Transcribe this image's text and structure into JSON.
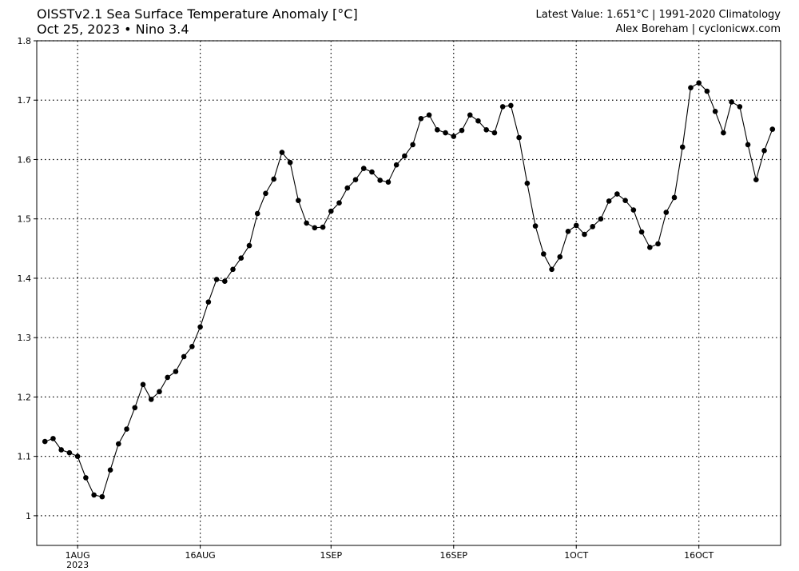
{
  "title": {
    "line1": "OISSTv2.1 Sea Surface Temperature Anomaly [°C]",
    "line2_date": "Oct 25, 2023",
    "line2_sep": "•",
    "line2_region": "Nino 3.4",
    "right_line1": "Latest Value: 1.651°C | 1991-2020 Climatology",
    "right_line2": "Alex Boreham | cyclonicwx.com"
  },
  "colors": {
    "line": "#000000",
    "marker": "#000000",
    "grid": "#000000",
    "background": "#ffffff"
  },
  "chart_data": {
    "type": "line",
    "title": "OISSTv2.1 Sea Surface Temperature Anomaly [°C]",
    "xlabel": "",
    "ylabel": "",
    "x_start": "2023-07-28",
    "x_end": "2023-10-25",
    "x_range": [
      "2023-07-27",
      "2023-10-26"
    ],
    "ylim": [
      0.95,
      1.8
    ],
    "yticks": [
      1,
      1.1,
      1.2,
      1.3,
      1.4,
      1.5,
      1.6,
      1.7,
      1.8
    ],
    "ytick_labels": [
      "1",
      "1.1",
      "1.2",
      "1.3",
      "1.4",
      "1.5",
      "1.6",
      "1.7",
      "1.8"
    ],
    "xticks": [
      {
        "date": "2023-08-01",
        "label": "1AUG",
        "sublabel": "2023"
      },
      {
        "date": "2023-08-16",
        "label": "16AUG",
        "sublabel": ""
      },
      {
        "date": "2023-09-01",
        "label": "1SEP",
        "sublabel": ""
      },
      {
        "date": "2023-09-16",
        "label": "16SEP",
        "sublabel": ""
      },
      {
        "date": "2023-10-01",
        "label": "1OCT",
        "sublabel": ""
      },
      {
        "date": "2023-10-16",
        "label": "16OCT",
        "sublabel": ""
      }
    ],
    "grid": true,
    "grid_style": "dotted",
    "series": [
      {
        "values": [
          1.125,
          1.13,
          1.111,
          1.106,
          1.1,
          1.064,
          1.035,
          1.032,
          1.077,
          1.121,
          1.146,
          1.182,
          1.221,
          1.196,
          1.209,
          1.233,
          1.243,
          1.268,
          1.285,
          1.318,
          1.36,
          1.398,
          1.395,
          1.415,
          1.434,
          1.455,
          1.509,
          1.543,
          1.567,
          1.612,
          1.595,
          1.531,
          1.493,
          1.485,
          1.486,
          1.513,
          1.527,
          1.552,
          1.566,
          1.585,
          1.579,
          1.565,
          1.562,
          1.591,
          1.606,
          1.625,
          1.669,
          1.675,
          1.65,
          1.645,
          1.639,
          1.649,
          1.675,
          1.665,
          1.65,
          1.645,
          1.689,
          1.691,
          1.637,
          1.56,
          1.488,
          1.441,
          1.415,
          1.436,
          1.479,
          1.489,
          1.474,
          1.487,
          1.5,
          1.53,
          1.542,
          1.531,
          1.515,
          1.478,
          1.452,
          1.458,
          1.511,
          1.536,
          1.621,
          1.721,
          1.729,
          1.715,
          1.681,
          1.645,
          1.697,
          1.689,
          1.625,
          1.566,
          1.615,
          1.651
        ]
      }
    ]
  }
}
